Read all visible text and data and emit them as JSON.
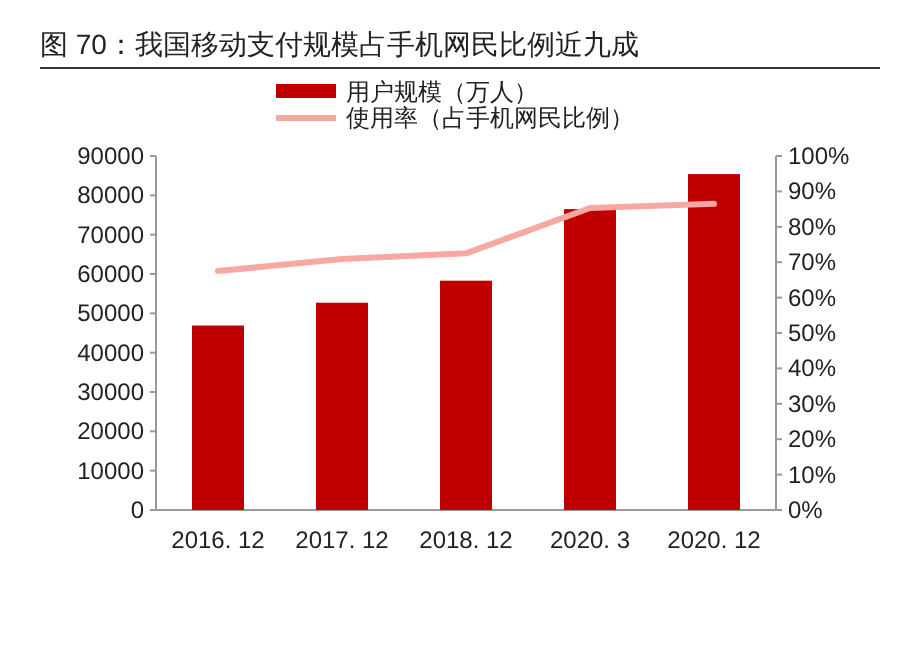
{
  "chart_data": {
    "type": "bar",
    "title": "图 70：我国移动支付规模占手机网民比例近九成",
    "categories": [
      "2016. 12",
      "2017. 12",
      "2018. 12",
      "2020. 3",
      "2020. 12"
    ],
    "series": [
      {
        "name": "用户规模（万人）",
        "color": "#c00000",
        "values": [
          46900,
          52700,
          58300,
          76500,
          85400
        ]
      },
      {
        "name": "使用率（占手机网民比例）",
        "type": "line",
        "axis": "y2",
        "color": "#f7a8a2",
        "values": [
          67.5,
          70.9,
          72.5,
          85.3,
          86.5
        ]
      }
    ],
    "ylim": [
      0,
      90000
    ],
    "yticks": [
      0,
      10000,
      20000,
      30000,
      40000,
      50000,
      60000,
      70000,
      80000,
      90000
    ],
    "y2lim": [
      0,
      100
    ],
    "y2ticks": [
      {
        "value": 0,
        "label": "0%"
      },
      {
        "value": 10,
        "label": "10%"
      },
      {
        "value": 20,
        "label": "20%"
      },
      {
        "value": 30,
        "label": "30%"
      },
      {
        "value": 40,
        "label": "40%"
      },
      {
        "value": 50,
        "label": "50%"
      },
      {
        "value": 60,
        "label": "60%"
      },
      {
        "value": 70,
        "label": "70%"
      },
      {
        "value": 80,
        "label": "80%"
      },
      {
        "value": 90,
        "label": "90%"
      },
      {
        "value": 100,
        "label": "100%"
      }
    ],
    "legend": "top",
    "grid": false
  }
}
